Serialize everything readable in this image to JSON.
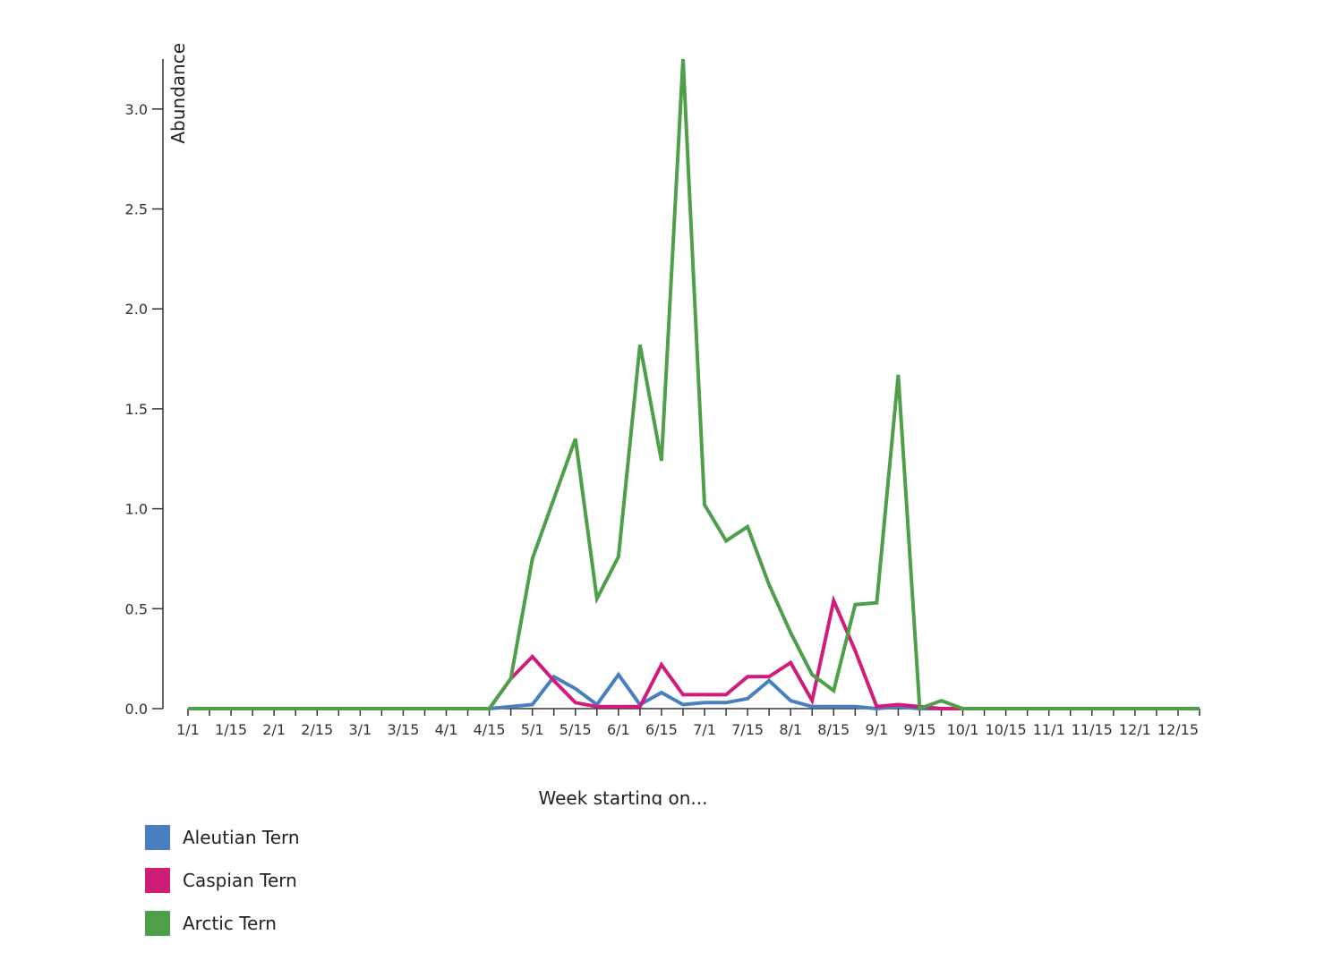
{
  "chart_data": {
    "type": "line",
    "title": "",
    "xlabel": "Week starting on...",
    "ylabel": "Abundance",
    "x_ticks": [
      "1/1",
      "1/15",
      "2/1",
      "2/15",
      "3/1",
      "3/15",
      "4/1",
      "4/15",
      "5/1",
      "5/15",
      "6/1",
      "6/15",
      "7/1",
      "7/15",
      "8/1",
      "8/15",
      "9/1",
      "9/15",
      "10/1",
      "10/15",
      "11/1",
      "11/15",
      "12/1",
      "12/15"
    ],
    "y_ticks": [
      "0.0",
      "0.5",
      "1.0",
      "1.5",
      "2.0",
      "2.5",
      "3.0"
    ],
    "ylim": [
      0,
      3.25
    ],
    "weeks": 48,
    "series": [
      {
        "name": "Aleutian Tern",
        "color": "#4a7fbf",
        "values": [
          0,
          0,
          0,
          0,
          0,
          0,
          0,
          0,
          0,
          0,
          0,
          0,
          0,
          0,
          0,
          0.01,
          0.02,
          0.16,
          0.1,
          0.02,
          0.17,
          0.02,
          0.08,
          0.02,
          0.03,
          0.03,
          0.05,
          0.14,
          0.04,
          0.01,
          0.01,
          0.01,
          0,
          0.01,
          0,
          0,
          0,
          0,
          0,
          0,
          0,
          0,
          0,
          0,
          0,
          0,
          0,
          0
        ]
      },
      {
        "name": "Caspian Tern",
        "color": "#d01c7a",
        "values": [
          0,
          0,
          0,
          0,
          0,
          0,
          0,
          0,
          0,
          0,
          0,
          0,
          0,
          0,
          0,
          0.15,
          0.26,
          0.14,
          0.03,
          0.01,
          0.01,
          0.01,
          0.22,
          0.07,
          0.07,
          0.07,
          0.16,
          0.16,
          0.23,
          0.04,
          0.54,
          0.29,
          0.01,
          0.02,
          0.01,
          0,
          0,
          0,
          0,
          0,
          0,
          0,
          0,
          0,
          0,
          0,
          0,
          0
        ]
      },
      {
        "name": "Arctic Tern",
        "color": "#4e9e4a",
        "values": [
          0,
          0,
          0,
          0,
          0,
          0,
          0,
          0,
          0,
          0,
          0,
          0,
          0,
          0,
          0,
          0.15,
          0.75,
          1.05,
          1.35,
          0.55,
          0.76,
          1.82,
          1.24,
          3.25,
          1.02,
          0.84,
          0.91,
          0.62,
          0.38,
          0.17,
          0.09,
          0.52,
          0.53,
          1.67,
          0,
          0.04,
          0,
          0,
          0,
          0,
          0,
          0,
          0,
          0,
          0,
          0,
          0,
          0
        ]
      }
    ],
    "legend_position": "bottom-left"
  }
}
